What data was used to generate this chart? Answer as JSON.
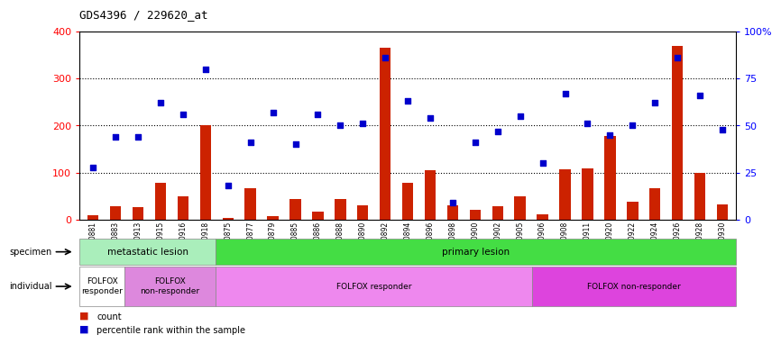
{
  "title": "GDS4396 / 229620_at",
  "samples": [
    "GSM710881",
    "GSM710883",
    "GSM710913",
    "GSM710915",
    "GSM710916",
    "GSM710918",
    "GSM710875",
    "GSM710877",
    "GSM710879",
    "GSM710885",
    "GSM710886",
    "GSM710888",
    "GSM710890",
    "GSM710892",
    "GSM710894",
    "GSM710896",
    "GSM710898",
    "GSM710900",
    "GSM710902",
    "GSM710905",
    "GSM710906",
    "GSM710908",
    "GSM710911",
    "GSM710920",
    "GSM710922",
    "GSM710924",
    "GSM710926",
    "GSM710928",
    "GSM710930"
  ],
  "counts": [
    10,
    28,
    27,
    78,
    50,
    200,
    5,
    68,
    8,
    45,
    18,
    45,
    30,
    365,
    78,
    105,
    30,
    22,
    28,
    50,
    12,
    108,
    110,
    178,
    38,
    68,
    370,
    100,
    32
  ],
  "percentiles": [
    28,
    44,
    44,
    62,
    56,
    80,
    18,
    41,
    57,
    40,
    56,
    50,
    51,
    86,
    63,
    54,
    9,
    41,
    47,
    55,
    30,
    67,
    51,
    45,
    50,
    62,
    86,
    66,
    48
  ],
  "specimen_groups": [
    {
      "label": "metastatic lesion",
      "start": 0,
      "end": 6,
      "color": "#aaeebb"
    },
    {
      "label": "primary lesion",
      "start": 6,
      "end": 29,
      "color": "#44dd44"
    }
  ],
  "individual_groups": [
    {
      "label": "FOLFOX\nresponder",
      "start": 0,
      "end": 2,
      "color": "#ffffff"
    },
    {
      "label": "FOLFOX\nnon-responder",
      "start": 2,
      "end": 6,
      "color": "#ee88ee"
    },
    {
      "label": "FOLFOX responder",
      "start": 6,
      "end": 20,
      "color": "#ee88ee"
    },
    {
      "label": "FOLFOX non-responder",
      "start": 20,
      "end": 29,
      "color": "#dd44dd"
    }
  ],
  "bar_color": "#cc2200",
  "dot_color": "#0000cc",
  "ylim_left": [
    0,
    400
  ],
  "ylim_right": [
    0,
    100
  ],
  "yticks_left": [
    0,
    100,
    200,
    300,
    400
  ],
  "yticks_right": [
    0,
    25,
    50,
    75,
    100
  ],
  "ytick_labels_right": [
    "0",
    "25",
    "50",
    "75",
    "100%"
  ],
  "background_color": "#ffffff"
}
